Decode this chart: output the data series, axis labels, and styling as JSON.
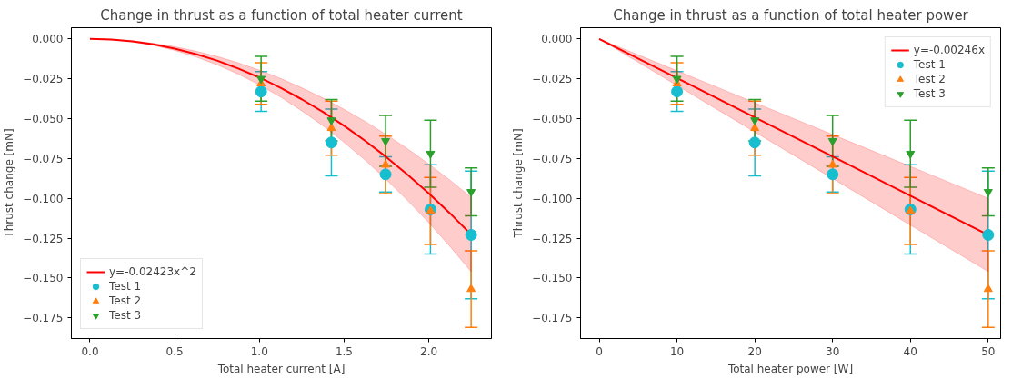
{
  "chart_data": [
    {
      "type": "scatter",
      "title": "Change in thrust as a function of total heater current",
      "xlabel": "Total heater current [A]",
      "ylabel": "Thrust change [mN]",
      "xlim": [
        -0.11,
        2.37
      ],
      "ylim": [
        -0.188,
        0.007
      ],
      "xticks": [
        {
          "value": 0,
          "label": "0.0"
        },
        {
          "value": 0.5,
          "label": "0.5"
        },
        {
          "value": 1,
          "label": "1.0"
        },
        {
          "value": 1.5,
          "label": "1.5"
        },
        {
          "value": 2,
          "label": "2.0"
        }
      ],
      "yticks": [
        {
          "value": 0,
          "label": "0.000"
        },
        {
          "value": -0.025,
          "label": "−0.025"
        },
        {
          "value": -0.05,
          "label": "−0.050"
        },
        {
          "value": -0.075,
          "label": "−0.075"
        },
        {
          "value": -0.1,
          "label": "−0.100"
        },
        {
          "value": -0.125,
          "label": "−0.125"
        },
        {
          "value": -0.15,
          "label": "−0.150"
        },
        {
          "value": -0.175,
          "label": "−0.175"
        }
      ],
      "grid": false,
      "legend": "bottom left",
      "series": [
        {
          "name": "y=-0.02423x^2",
          "type": "line",
          "color": "#ff0000",
          "x": [
            0,
            0.125,
            0.25,
            0.375,
            0.5,
            0.625,
            0.75,
            0.875,
            1,
            1.125,
            1.25,
            1.375,
            1.5,
            1.625,
            1.75,
            1.875,
            2,
            2.125,
            2.25
          ],
          "values": [
            0,
            -0.0004,
            -0.0015,
            -0.0034,
            -0.0061,
            -0.0095,
            -0.0136,
            -0.0186,
            -0.0242,
            -0.0307,
            -0.0379,
            -0.0458,
            -0.0545,
            -0.064,
            -0.0742,
            -0.0852,
            -0.0969,
            -0.1094,
            -0.1227
          ],
          "lower": [
            0,
            -0.0005,
            -0.0018,
            -0.0041,
            -0.0072,
            -0.0113,
            -0.0162,
            -0.0221,
            -0.0288,
            -0.0365,
            -0.0451,
            -0.0545,
            -0.0649,
            -0.0761,
            -0.0883,
            -0.1014,
            -0.1153,
            -0.1302,
            -0.146
          ],
          "upper": [
            0,
            -0.0003,
            -0.0012,
            -0.0028,
            -0.0049,
            -0.0077,
            -0.011,
            -0.015,
            -0.0196,
            -0.0248,
            -0.0307,
            -0.0371,
            -0.0442,
            -0.0518,
            -0.0601,
            -0.069,
            -0.0785,
            -0.0886,
            -0.0994
          ]
        },
        {
          "name": "Test 1",
          "marker": "circle",
          "color": "#17becf",
          "x": [
            1.01,
            1.425,
            1.745,
            2.01,
            2.25
          ],
          "values": [
            -0.033,
            -0.065,
            -0.085,
            -0.107,
            -0.123
          ],
          "errors": [
            0.0125,
            0.021,
            0.011,
            0.028,
            0.04
          ]
        },
        {
          "name": "Test 2",
          "marker": "triangle",
          "color": "#ff7f0e",
          "x": [
            1.01,
            1.425,
            1.745,
            2.01,
            2.25
          ],
          "values": [
            -0.028,
            -0.056,
            -0.079,
            -0.108,
            -0.157
          ],
          "errors": [
            0.013,
            0.017,
            0.018,
            0.021,
            0.024
          ]
        },
        {
          "name": "Test 3",
          "color": "#2ca02c",
          "x": [
            1.01,
            1.425,
            1.745,
            2.01,
            2.25
          ],
          "values": [
            -0.025,
            -0.051,
            -0.064,
            -0.072,
            -0.096
          ],
          "errors": [
            0.014,
            0.013,
            0.016,
            0.021,
            0.015
          ]
        }
      ]
    },
    {
      "type": "scatter",
      "title": "Change in thrust as a function of total heater power",
      "xlabel": "Total heater power [W]",
      "ylabel": "Thrust change [mN]",
      "xlim": [
        -2.4,
        51.6
      ],
      "ylim": [
        -0.188,
        0.007
      ],
      "xticks": [
        0,
        10,
        20,
        30,
        40,
        50
      ],
      "yticks": [
        {
          "value": 0,
          "label": "0.000"
        },
        {
          "value": -0.025,
          "label": "−0.025"
        },
        {
          "value": -0.05,
          "label": "−0.050"
        },
        {
          "value": -0.075,
          "label": "−0.075"
        },
        {
          "value": -0.1,
          "label": "−0.100"
        },
        {
          "value": -0.125,
          "label": "−0.125"
        },
        {
          "value": -0.15,
          "label": "−0.150"
        },
        {
          "value": -0.175,
          "label": "−0.175"
        }
      ],
      "grid": false,
      "legend": "top right",
      "series": [
        {
          "name": "y=-0.00246x",
          "type": "line",
          "color": "#ff0000",
          "x": [
            0,
            10,
            20,
            30,
            40,
            50
          ],
          "values": [
            0,
            -0.0246,
            -0.0492,
            -0.0738,
            -0.0984,
            -0.123
          ],
          "lower": [
            0,
            -0.0292,
            -0.0584,
            -0.0876,
            -0.1168,
            -0.146
          ],
          "upper": [
            0,
            -0.02,
            -0.04,
            -0.06,
            -0.08,
            -0.1
          ]
        },
        {
          "name": "Test 1",
          "marker": "circle",
          "color": "#17becf",
          "x": [
            10,
            20,
            30,
            40,
            50
          ],
          "values": [
            -0.033,
            -0.065,
            -0.085,
            -0.107,
            -0.123
          ],
          "errors": [
            0.0125,
            0.021,
            0.011,
            0.028,
            0.04
          ]
        },
        {
          "name": "Test 2",
          "marker": "triangle",
          "color": "#ff7f0e",
          "x": [
            10,
            20,
            30,
            40,
            50
          ],
          "values": [
            -0.028,
            -0.056,
            -0.079,
            -0.108,
            -0.157
          ],
          "errors": [
            0.013,
            0.017,
            0.018,
            0.021,
            0.024
          ]
        },
        {
          "name": "Test 3",
          "color": "#2ca02c",
          "x": [
            10,
            20,
            30,
            40,
            50
          ],
          "values": [
            -0.025,
            -0.051,
            -0.064,
            -0.072,
            -0.096
          ],
          "errors": [
            0.014,
            0.013,
            0.016,
            0.021,
            0.015
          ]
        }
      ]
    }
  ]
}
